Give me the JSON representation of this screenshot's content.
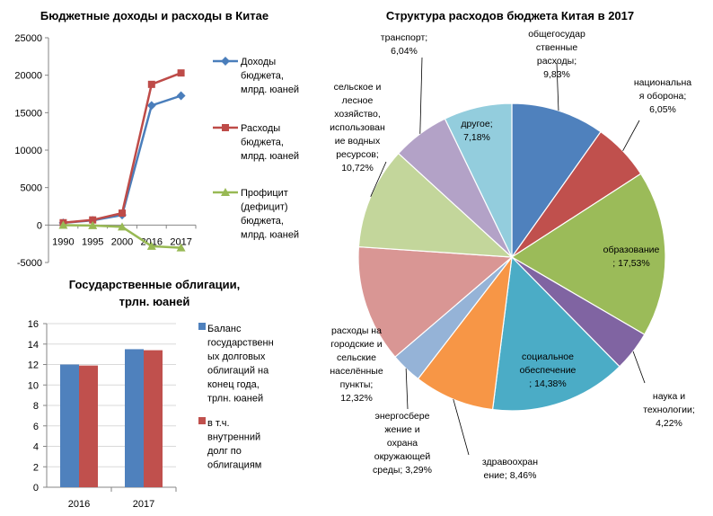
{
  "chart_data": [
    {
      "type": "line",
      "title": "Бюджетные доходы и расходы в Китае",
      "x": [
        "1990",
        "1995",
        "2000",
        "2016",
        "2017"
      ],
      "ylim": [
        -5000,
        25000
      ],
      "yticks": [
        "25000",
        "20000",
        "15000",
        "10000",
        "5000",
        "0",
        "-5000"
      ],
      "colors": [
        "#4A7EBB",
        "#BE4B48",
        "#98B954"
      ],
      "series": [
        {
          "name_lines": [
            "Доходы",
            "бюджета,",
            "млрд. юаней"
          ],
          "values": [
            290,
            620,
            1340,
            15960,
            17260
          ]
        },
        {
          "name_lines": [
            "Расходы",
            "бюджета,",
            "млрд. юаней"
          ],
          "values": [
            310,
            680,
            1590,
            18780,
            20300
          ]
        },
        {
          "name_lines": [
            "Профицит",
            "(дефицит)",
            "бюджета,",
            "млрд. юаней"
          ],
          "values": [
            -20,
            -60,
            -250,
            -2820,
            -3040
          ]
        }
      ]
    },
    {
      "type": "bar",
      "title_lines": [
        "Государственные облигации,",
        "трлн. юаней"
      ],
      "categories": [
        "2016",
        "2017"
      ],
      "ylim": [
        0,
        16
      ],
      "yticks": [
        "0",
        "2",
        "4",
        "6",
        "8",
        "10",
        "12",
        "14",
        "16"
      ],
      "colors": [
        "#4F81BD",
        "#C0504D"
      ],
      "series": [
        {
          "name_lines": [
            "Баланс",
            "государственн",
            "ых долговых",
            "облигаций на",
            "конец года,",
            "трлн. юаней"
          ],
          "values": [
            12.0,
            13.5
          ]
        },
        {
          "name_lines": [
            "в т.ч.",
            "внутренний",
            "долг по",
            "облигациям"
          ],
          "values": [
            11.9,
            13.4
          ]
        }
      ]
    },
    {
      "type": "pie",
      "title": "Структура расходов бюджета Китая в 2017",
      "slices": [
        {
          "label_lines": [
            "общегосудар",
            "ственные",
            "расходы;",
            "9,83%"
          ],
          "value": 9.83,
          "color": "#4F81BD"
        },
        {
          "label_lines": [
            "национальна",
            "я оборона;",
            "6,05%"
          ],
          "value": 6.05,
          "color": "#C0504D"
        },
        {
          "label_lines": [
            "образование",
            "; 17,53%"
          ],
          "value": 17.53,
          "color": "#9BBB59"
        },
        {
          "label_lines": [
            "наука и",
            "технологии;",
            "4,22%"
          ],
          "value": 4.22,
          "color": "#8064A2"
        },
        {
          "label_lines": [
            "социальное",
            "обеспечение",
            "; 14,38%"
          ],
          "value": 14.38,
          "color": "#4BACC6"
        },
        {
          "label_lines": [
            "здравоохран",
            "ение; 8,46%"
          ],
          "value": 8.46,
          "color": "#F79646"
        },
        {
          "label_lines": [
            "энергосбере",
            "жение и",
            "охрана",
            "окружающей",
            "среды; 3,29%"
          ],
          "value": 3.29,
          "color": "#95B3D7"
        },
        {
          "label_lines": [
            "расходы на",
            "городские и",
            "сельские",
            "населённые",
            "пункты;",
            "12,32%"
          ],
          "value": 12.32,
          "color": "#D99694"
        },
        {
          "label_lines": [
            "сельское и",
            "лесное",
            "хозяйство,",
            "использован",
            "ие водных",
            "ресурсов;",
            "10,72%"
          ],
          "value": 10.72,
          "color": "#C3D69B"
        },
        {
          "label_lines": [
            "транспорт;",
            "6,04%"
          ],
          "value": 6.04,
          "color": "#B3A2C7"
        },
        {
          "label_lines": [
            "другое;",
            "7,18%"
          ],
          "value": 7.18,
          "color": "#93CDDD"
        }
      ]
    }
  ]
}
